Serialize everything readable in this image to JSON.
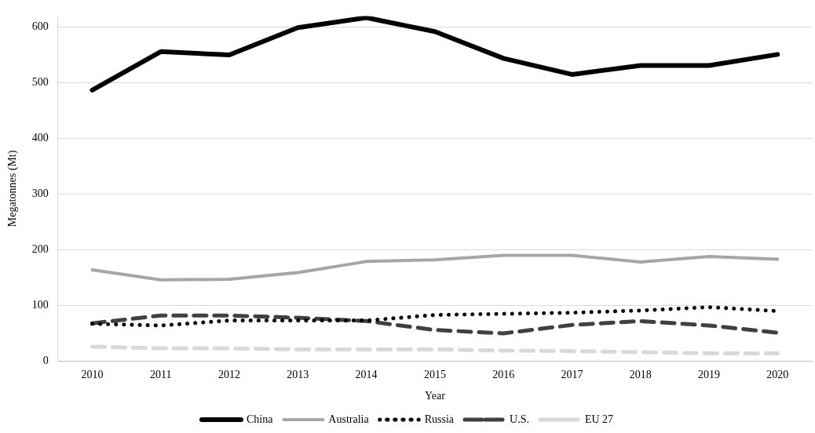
{
  "chart_data": {
    "type": "line",
    "xlabel": "Year",
    "ylabel": "Megatonnes (Mt)",
    "categories": [
      "2010",
      "2011",
      "2012",
      "2013",
      "2014",
      "2015",
      "2016",
      "2017",
      "2018",
      "2019",
      "2020"
    ],
    "series": [
      {
        "name": "China",
        "color": "#000000",
        "line_style": "solid",
        "values": [
          487,
          556,
          550,
          599,
          617,
          592,
          544,
          515,
          531,
          531,
          551
        ]
      },
      {
        "name": "Australia",
        "color": "#a6a6a6",
        "line_style": "solid",
        "values": [
          164,
          146,
          147,
          159,
          179,
          182,
          190,
          190,
          178,
          188,
          183
        ]
      },
      {
        "name": "Russia",
        "color": "#000000",
        "line_style": "dotted",
        "values": [
          67,
          64,
          73,
          73,
          73,
          83,
          85,
          87,
          91,
          97,
          90
        ]
      },
      {
        "name": "U.S.",
        "color": "#404040",
        "line_style": "dashed",
        "values": [
          68,
          82,
          82,
          78,
          72,
          56,
          50,
          65,
          72,
          64,
          51
        ]
      },
      {
        "name": "EU 27",
        "color": "#d9d9d9",
        "line_style": "dashed",
        "values": [
          26,
          23,
          23,
          21,
          21,
          21,
          19,
          18,
          16,
          14,
          14
        ]
      }
    ],
    "ylim": [
      0,
      620
    ],
    "yticks": [
      0,
      100,
      200,
      300,
      400,
      500,
      600
    ],
    "grid": "y",
    "legend": "bottom",
    "marker": "none"
  }
}
